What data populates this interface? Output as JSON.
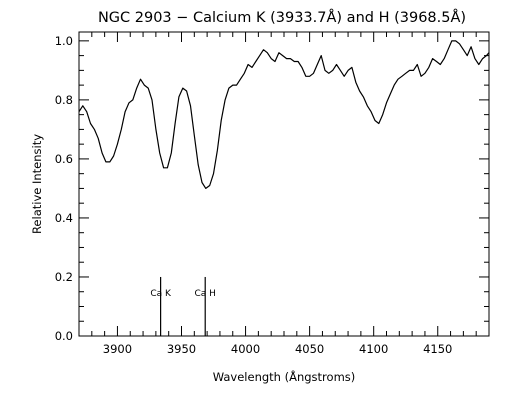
{
  "chart_data": {
    "type": "line",
    "title": "NGC 2903 − Calcium K (3933.7Å) and H (3968.5Å)",
    "xlabel": "Wavelength (Ångstroms)",
    "ylabel": "Relative Intensity",
    "xlim": [
      3870,
      4190
    ],
    "ylim": [
      0.0,
      1.03
    ],
    "x_ticks": [
      3900,
      3950,
      4000,
      4050,
      4100,
      4150
    ],
    "x_tick_labels": [
      "3900",
      "3950",
      "4000",
      "4050",
      "4100",
      "4150"
    ],
    "y_ticks": [
      0.0,
      0.2,
      0.4,
      0.6,
      0.8,
      1.0
    ],
    "y_tick_labels": [
      "0.0",
      "0.2",
      "0.4",
      "0.6",
      "0.8",
      "1.0"
    ],
    "grid": false,
    "series": [
      {
        "x": [
          3870,
          3873,
          3876,
          3879,
          3882,
          3885,
          3888,
          3891,
          3894,
          3897,
          3900,
          3903,
          3906,
          3909,
          3912,
          3915,
          3918,
          3921,
          3924,
          3927,
          3930,
          3933,
          3936,
          3939,
          3942,
          3945,
          3948,
          3951,
          3954,
          3957,
          3960,
          3963,
          3966,
          3969,
          3972,
          3975,
          3978,
          3981,
          3984,
          3987,
          3990,
          3993,
          3996,
          3999,
          4002,
          4005,
          4008,
          4011,
          4014,
          4017,
          4020,
          4023,
          4026,
          4029,
          4032,
          4035,
          4038,
          4041,
          4044,
          4047,
          4050,
          4053,
          4056,
          4059,
          4062,
          4065,
          4068,
          4071,
          4074,
          4077,
          4080,
          4083,
          4086,
          4089,
          4092,
          4095,
          4098,
          4101,
          4104,
          4107,
          4110,
          4113,
          4116,
          4119,
          4122,
          4125,
          4128,
          4131,
          4134,
          4137,
          4140,
          4143,
          4146,
          4149,
          4152,
          4155,
          4158,
          4161,
          4164,
          4167,
          4170,
          4173,
          4176,
          4179,
          4182,
          4185,
          4188,
          4190
        ],
        "y": [
          0.76,
          0.78,
          0.76,
          0.72,
          0.7,
          0.67,
          0.62,
          0.59,
          0.59,
          0.61,
          0.65,
          0.7,
          0.76,
          0.79,
          0.8,
          0.84,
          0.87,
          0.85,
          0.84,
          0.8,
          0.7,
          0.62,
          0.57,
          0.57,
          0.62,
          0.72,
          0.81,
          0.84,
          0.83,
          0.78,
          0.68,
          0.58,
          0.52,
          0.5,
          0.51,
          0.55,
          0.63,
          0.73,
          0.8,
          0.84,
          0.85,
          0.85,
          0.87,
          0.89,
          0.92,
          0.91,
          0.93,
          0.95,
          0.97,
          0.96,
          0.94,
          0.93,
          0.96,
          0.95,
          0.94,
          0.94,
          0.93,
          0.93,
          0.91,
          0.88,
          0.88,
          0.89,
          0.92,
          0.95,
          0.9,
          0.89,
          0.9,
          0.92,
          0.9,
          0.88,
          0.9,
          0.91,
          0.86,
          0.83,
          0.81,
          0.78,
          0.76,
          0.73,
          0.72,
          0.75,
          0.79,
          0.82,
          0.85,
          0.87,
          0.88,
          0.89,
          0.9,
          0.9,
          0.92,
          0.88,
          0.89,
          0.91,
          0.94,
          0.93,
          0.92,
          0.94,
          0.97,
          1.0,
          1.0,
          0.99,
          0.97,
          0.95,
          0.98,
          0.94,
          0.92,
          0.94,
          0.95,
          0.96
        ]
      }
    ],
    "annotations": [
      {
        "text": "Ca K",
        "x": 3933.7,
        "y_top": 0.2,
        "y_bottom": 0.0
      },
      {
        "text": "Ca H",
        "x": 3968.5,
        "y_top": 0.2,
        "y_bottom": 0.0
      }
    ]
  }
}
